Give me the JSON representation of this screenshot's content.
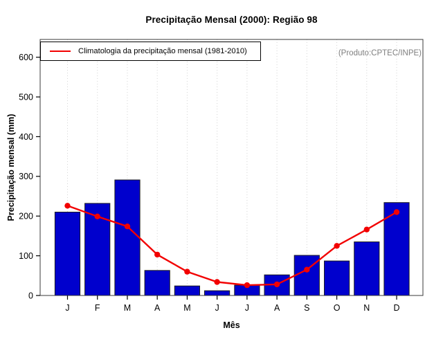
{
  "chart_data": {
    "type": "bar",
    "title": "Precipitação Mensal (2000): Região 98",
    "xlabel": "Mês",
    "ylabel": "Precipitação mensal (mm)",
    "annotation": "(Produto:CPTEC/INPE)",
    "categories": [
      "J",
      "F",
      "M",
      "A",
      "M",
      "J",
      "J",
      "A",
      "S",
      "O",
      "N",
      "D"
    ],
    "series": [
      {
        "name": "Precipitação Mensal (2000)",
        "type": "bar",
        "color": "#0000CD",
        "values": [
          210,
          232,
          291,
          63,
          24,
          12,
          26,
          52,
          101,
          87,
          135,
          234
        ]
      },
      {
        "name": "Climatologia da precipitação mensal (1981-2010)",
        "type": "line",
        "color": "#F20000",
        "values": [
          226,
          199,
          174,
          103,
          60,
          34,
          26,
          28,
          65,
          125,
          166,
          210
        ]
      }
    ],
    "ylim": [
      0,
      600
    ],
    "yticks": [
      0,
      100,
      200,
      300,
      400,
      500,
      600
    ],
    "grid": "vertical-dotted",
    "legend_position": "top-left",
    "colors": {
      "bar_fill": "#0000CD",
      "bar_border": "#1f1f1f",
      "line": "#F20000",
      "grid": "#d4d4d4",
      "frame": "#3a3a3a",
      "annotation_text": "#7e7e7e"
    }
  }
}
